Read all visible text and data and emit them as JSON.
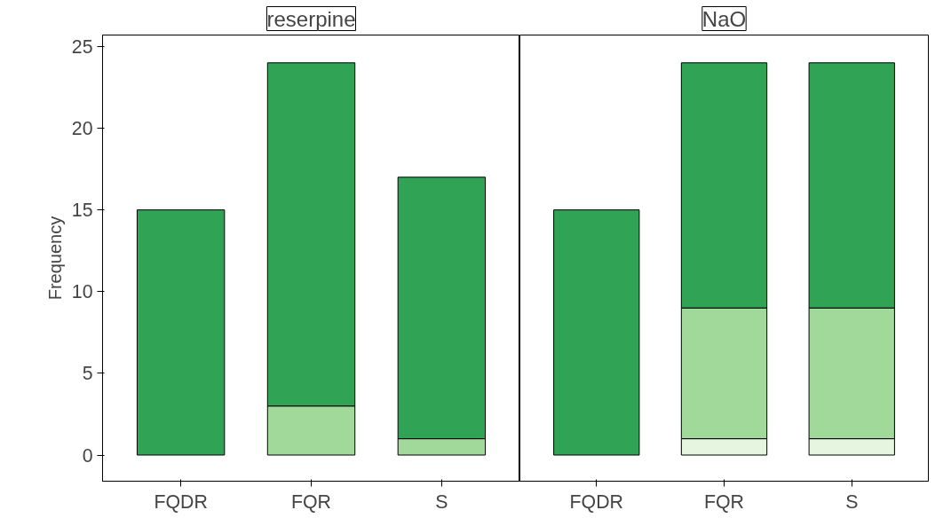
{
  "chart_data": [
    {
      "type": "bar",
      "title": "reserpine",
      "ylabel": "Frequency",
      "stacked": true,
      "categories": [
        "FQDR",
        "FQR",
        "S"
      ],
      "series": [
        {
          "color": "#a1d99b",
          "values": [
            0,
            3,
            1
          ]
        },
        {
          "color": "#31a354",
          "values": [
            15,
            21,
            16
          ]
        }
      ],
      "ylim": [
        -1.6,
        25.7
      ],
      "yticks": [
        0,
        5,
        10,
        15,
        20,
        25
      ]
    },
    {
      "type": "bar",
      "title": "NaO",
      "stacked": true,
      "categories": [
        "FQDR",
        "FQR",
        "S"
      ],
      "series": [
        {
          "color": "#e5f5e0",
          "values": [
            0,
            1,
            1
          ]
        },
        {
          "color": "#a1d99b",
          "values": [
            0,
            8,
            8
          ]
        },
        {
          "color": "#31a354",
          "values": [
            15,
            15,
            15
          ]
        }
      ],
      "ylim": [
        -1.6,
        25.7
      ],
      "yticks": [
        0,
        5,
        10,
        15,
        20,
        25
      ],
      "tick_labels": "x"
    }
  ]
}
